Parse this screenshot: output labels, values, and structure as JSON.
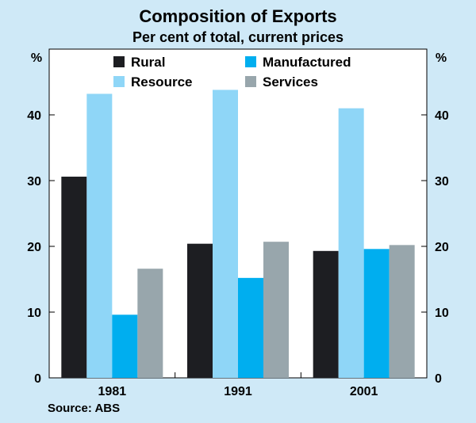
{
  "chart_data": {
    "type": "bar",
    "title": "Composition of Exports",
    "subtitle": "Per cent of total, current prices",
    "categories": [
      "1981",
      "1991",
      "2001"
    ],
    "series": [
      {
        "name": "Rural",
        "color": "#1d1e22",
        "values": [
          30.6,
          20.4,
          19.3
        ]
      },
      {
        "name": "Resource",
        "color": "#8fd6f7",
        "values": [
          43.2,
          43.8,
          41.0
        ]
      },
      {
        "name": "Manufactured",
        "color": "#00aeef",
        "values": [
          9.6,
          15.2,
          19.6
        ]
      },
      {
        "name": "Services",
        "color": "#98a6ac",
        "values": [
          16.6,
          20.7,
          20.2
        ]
      }
    ],
    "ylabel_left": "%",
    "ylabel_right": "%",
    "ylim": [
      0,
      50
    ],
    "yticks": [
      0,
      10,
      20,
      30,
      40
    ],
    "legend_placement": "top",
    "source": "Source: ABS"
  }
}
